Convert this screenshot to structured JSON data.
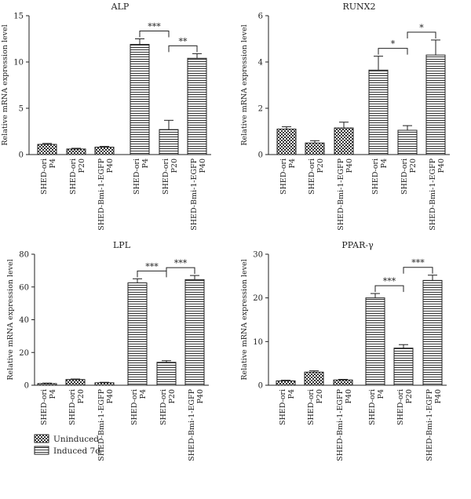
{
  "chart_data": [
    {
      "type": "bar",
      "title": "ALP",
      "ylabel": "Relative mRNA expression level",
      "ylim": [
        0,
        15
      ],
      "yticks": [
        0,
        5,
        10,
        15
      ],
      "categories": [
        [
          "SHED-ori",
          "P4"
        ],
        [
          "SHED-ori",
          "P20"
        ],
        [
          "SHED-Bmi-1-EGFP",
          "P40"
        ],
        [
          "SHED-ori",
          "P4"
        ],
        [
          "SHED-ori",
          "P20"
        ],
        [
          "SHED-Bmi-1-EGFP",
          "P40"
        ]
      ],
      "groups": [
        "uninduced",
        "uninduced",
        "uninduced",
        "induced",
        "induced",
        "induced"
      ],
      "values": [
        1.1,
        0.6,
        0.8,
        11.9,
        2.7,
        10.4
      ],
      "errors": [
        0.1,
        0.08,
        0.08,
        0.6,
        1.0,
        0.5
      ],
      "significance": [
        {
          "from": 3,
          "to": 4,
          "label": "***"
        },
        {
          "from": 4,
          "to": 5,
          "label": "**"
        }
      ]
    },
    {
      "type": "bar",
      "title": "RUNX2",
      "ylabel": "Relative mRNA expression level",
      "ylim": [
        0,
        6
      ],
      "yticks": [
        0,
        2,
        4,
        6
      ],
      "categories": [
        [
          "SHED-ori",
          "P4"
        ],
        [
          "SHED-ori",
          "P20"
        ],
        [
          "SHED-Bmi-1-EGFP",
          "P40"
        ],
        [
          "SHED-ori",
          "P4"
        ],
        [
          "SHED-ori",
          "P20"
        ],
        [
          "SHED-Bmi-1-EGFP",
          "P40"
        ]
      ],
      "groups": [
        "uninduced",
        "uninduced",
        "uninduced",
        "induced",
        "induced",
        "induced"
      ],
      "values": [
        1.1,
        0.5,
        1.15,
        3.65,
        1.05,
        4.3
      ],
      "errors": [
        0.1,
        0.1,
        0.25,
        0.6,
        0.2,
        0.65
      ],
      "significance": [
        {
          "from": 3,
          "to": 4,
          "label": "*"
        },
        {
          "from": 4,
          "to": 5,
          "label": "*"
        }
      ]
    },
    {
      "type": "bar",
      "title": "LPL",
      "ylabel": "Relative mRNA expression level",
      "ylim": [
        0,
        80
      ],
      "yticks": [
        0,
        20,
        40,
        60,
        80
      ],
      "categories": [
        [
          "SHED-ori",
          "P4"
        ],
        [
          "SHED-ori",
          "P20"
        ],
        [
          "SHED-Bmi-1-EGFP",
          "P40"
        ],
        [
          "SHED-ori",
          "P4"
        ],
        [
          "SHED-ori",
          "P20"
        ],
        [
          "SHED-Bmi-1-EGFP",
          "P40"
        ]
      ],
      "groups": [
        "uninduced",
        "uninduced",
        "uninduced",
        "induced",
        "induced",
        "induced"
      ],
      "values": [
        1.0,
        3.5,
        1.5,
        62.5,
        14.0,
        64.5
      ],
      "errors": [
        0.3,
        0.3,
        0.3,
        2.5,
        1.0,
        2.5
      ],
      "significance": [
        {
          "from": 3,
          "to": 4,
          "label": "***"
        },
        {
          "from": 4,
          "to": 5,
          "label": "***"
        }
      ]
    },
    {
      "type": "bar",
      "title": "PPAR-γ",
      "ylabel": "Relative mRNA expression level",
      "ylim": [
        0,
        30
      ],
      "yticks": [
        0,
        10,
        20,
        30
      ],
      "categories": [
        [
          "SHED-ori",
          "P4"
        ],
        [
          "SHED-ori",
          "P20"
        ],
        [
          "SHED-Bmi-1-EGFP",
          "P40"
        ],
        [
          "SHED-ori",
          "P4"
        ],
        [
          "SHED-ori",
          "P20"
        ],
        [
          "SHED-Bmi-1-EGFP",
          "P40"
        ]
      ],
      "groups": [
        "uninduced",
        "uninduced",
        "uninduced",
        "induced",
        "induced",
        "induced"
      ],
      "values": [
        1.0,
        3.0,
        1.2,
        20.0,
        8.5,
        24.0
      ],
      "errors": [
        0.15,
        0.3,
        0.15,
        1.0,
        0.8,
        1.2
      ],
      "significance": [
        {
          "from": 3,
          "to": 4,
          "label": "***"
        },
        {
          "from": 4,
          "to": 5,
          "label": "***"
        }
      ]
    }
  ],
  "legend": {
    "placement": "bottom-left",
    "items": [
      {
        "label": "Uninduced",
        "pattern": "checker"
      },
      {
        "label": "Induced 7d",
        "pattern": "stripes"
      }
    ]
  }
}
